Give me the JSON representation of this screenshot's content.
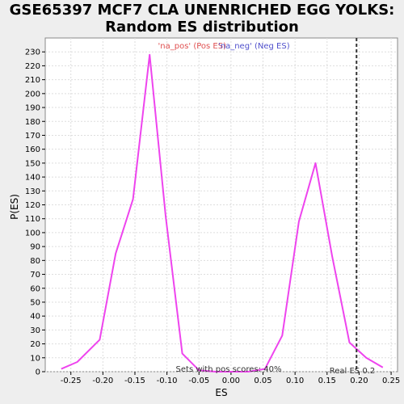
{
  "chart_data": {
    "type": "line",
    "title_line1": "GSE65397 MCF7 CLA UNENRICHED EGG YOLKS:",
    "title_line2": "Random ES distribution",
    "xlabel": "ES",
    "ylabel": "P(ES)",
    "xlim": [
      -0.29,
      0.26
    ],
    "ylim": [
      0,
      240
    ],
    "x_ticks": [
      -0.25,
      -0.2,
      -0.15,
      -0.1,
      -0.05,
      0.0,
      0.05,
      0.1,
      0.15,
      0.2,
      0.25
    ],
    "x_tick_labels": [
      "-0.25",
      "-0.20",
      "-0.15",
      "-0.10",
      "-0.05",
      "0.00",
      "0.05",
      "0.10",
      "0.15",
      "0.20",
      "0.25"
    ],
    "y_ticks": [
      0,
      10,
      20,
      30,
      40,
      50,
      60,
      70,
      80,
      90,
      100,
      110,
      120,
      130,
      140,
      150,
      160,
      170,
      180,
      190,
      200,
      210,
      220,
      230
    ],
    "grid": true,
    "legend": {
      "pos_label": "'na_pos' (Pos ES)",
      "neg_label": "'na_neg' (Neg ES)",
      "pos_color": "#e05050",
      "neg_color": "#5050cc",
      "placement": "top-center"
    },
    "series": [
      {
        "color": "#ee44ee",
        "x": [
          -0.265,
          -0.24,
          -0.205,
          -0.18,
          -0.153,
          -0.127,
          -0.102,
          -0.076,
          -0.05,
          -0.024,
          0.001,
          0.027,
          0.053,
          0.08,
          0.106,
          0.132,
          0.158,
          0.185,
          0.211,
          0.237
        ],
        "y": [
          2,
          7,
          23,
          85,
          124,
          228,
          112,
          13,
          1,
          0,
          0,
          0,
          2,
          26,
          108,
          150,
          83,
          21,
          10,
          3
        ]
      }
    ],
    "real_es": {
      "value": 0.196,
      "label": "Real ES 0.2",
      "style": "dashed",
      "color": "#333333"
    },
    "annotation": "Sets with pos scores: 40%"
  }
}
